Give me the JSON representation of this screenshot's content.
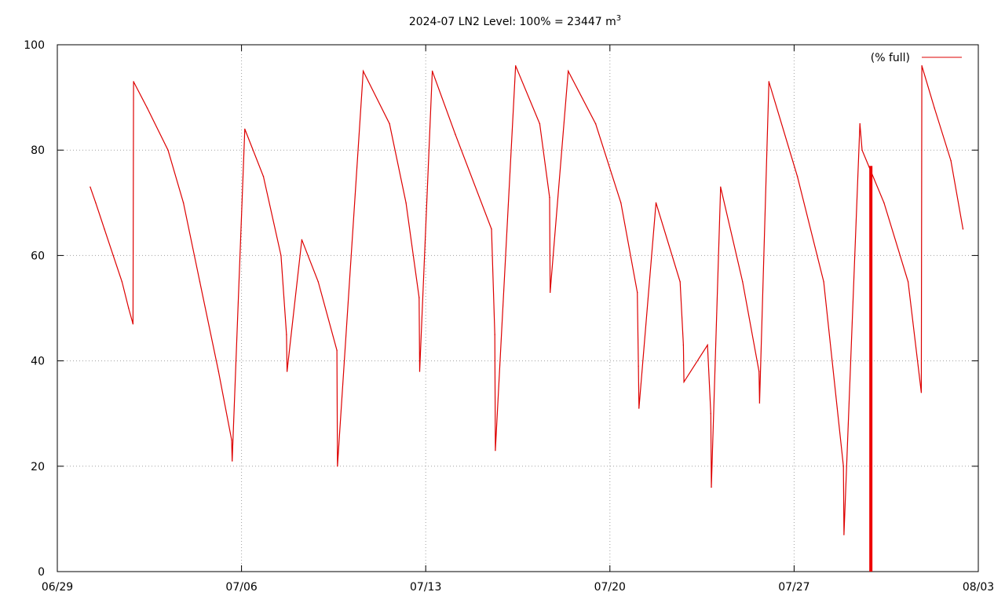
{
  "chart_data": {
    "type": "line",
    "title": "2024-07 LN2 Level: 100% = 23447 m",
    "title_superscript": "3",
    "xlabel": "",
    "ylabel": "",
    "x_ticks": [
      "06/29",
      "07/06",
      "07/13",
      "07/20",
      "07/27",
      "08/03"
    ],
    "x_range": [
      "2024-06-29",
      "2024-08-03"
    ],
    "ylim": [
      0,
      100
    ],
    "y_ticks": [
      0,
      20,
      40,
      60,
      80,
      100
    ],
    "grid": true,
    "legend_position": "top-right",
    "series_color": "#dd0000",
    "series": [
      {
        "name": "(% full)",
        "x": [
          "2024-06-30T06:00",
          "2024-06-30T11:00",
          "2024-06-30T19:00",
          "2024-07-01T03:00",
          "2024-07-01T11:00",
          "2024-07-01T17:00",
          "2024-07-01T21:00",
          "2024-07-01T21:30",
          "2024-07-02T10:00",
          "2024-07-03T05:00",
          "2024-07-03T19:00",
          "2024-07-04T10:00",
          "2024-07-05T03:00",
          "2024-07-05T15:00",
          "2024-07-05T15:30",
          "2024-07-06T03:00",
          "2024-07-06T20:00",
          "2024-07-07T12:00",
          "2024-07-07T17:00",
          "2024-07-07T17:30",
          "2024-07-08T07:00",
          "2024-07-08T22:00",
          "2024-07-09T15:00",
          "2024-07-09T15:30",
          "2024-07-10T15:00",
          "2024-07-11T15:00",
          "2024-07-12T06:00",
          "2024-07-12T18:00",
          "2024-07-12T18:30",
          "2024-07-13T06:00",
          "2024-07-14T03:00",
          "2024-07-15T12:00",
          "2024-07-15T15:00",
          "2024-07-15T15:30",
          "2024-07-16T10:00",
          "2024-07-17T08:00",
          "2024-07-17T17:00",
          "2024-07-17T17:30",
          "2024-07-18T10:00",
          "2024-07-19T11:00",
          "2024-07-20T10:00",
          "2024-07-21T01:00",
          "2024-07-21T02:00",
          "2024-07-21T02:30",
          "2024-07-21T18:00",
          "2024-07-22T16:00",
          "2024-07-22T19:00",
          "2024-07-22T19:30",
          "2024-07-23T17:00",
          "2024-07-23T20:00",
          "2024-07-23T20:30",
          "2024-07-24T05:00",
          "2024-07-25T01:00",
          "2024-07-25T16:00",
          "2024-07-25T16:30",
          "2024-07-26T01:00",
          "2024-07-27T03:00",
          "2024-07-28T03:00",
          "2024-07-28T21:00",
          "2024-07-28T21:30",
          "2024-07-29T12:00",
          "2024-07-29T14:00",
          "2024-07-30T10:00",
          "2024-07-31T08:00",
          "2024-07-31T20:00",
          "2024-07-31T20:30",
          "2024-08-01T08:00",
          "2024-08-01T23:00",
          "2024-08-02T10:00"
        ],
        "y": [
          73,
          70,
          65,
          60,
          55,
          50,
          47,
          93,
          88,
          80,
          70,
          55,
          38,
          25,
          21,
          84,
          75,
          60,
          45,
          38,
          63,
          55,
          42,
          20,
          95,
          85,
          70,
          52,
          38,
          95,
          83,
          65,
          45,
          23,
          96,
          85,
          71,
          53,
          95,
          85,
          70,
          53,
          39,
          31,
          70,
          55,
          43,
          36,
          43,
          30,
          16,
          73,
          55,
          38,
          32,
          93,
          75,
          55,
          20,
          7,
          85,
          80,
          70,
          55,
          34,
          96,
          88,
          78,
          65
        ]
      }
    ],
    "highlight_bar": {
      "x": "2024-07-29T22:00",
      "y": 77
    }
  }
}
